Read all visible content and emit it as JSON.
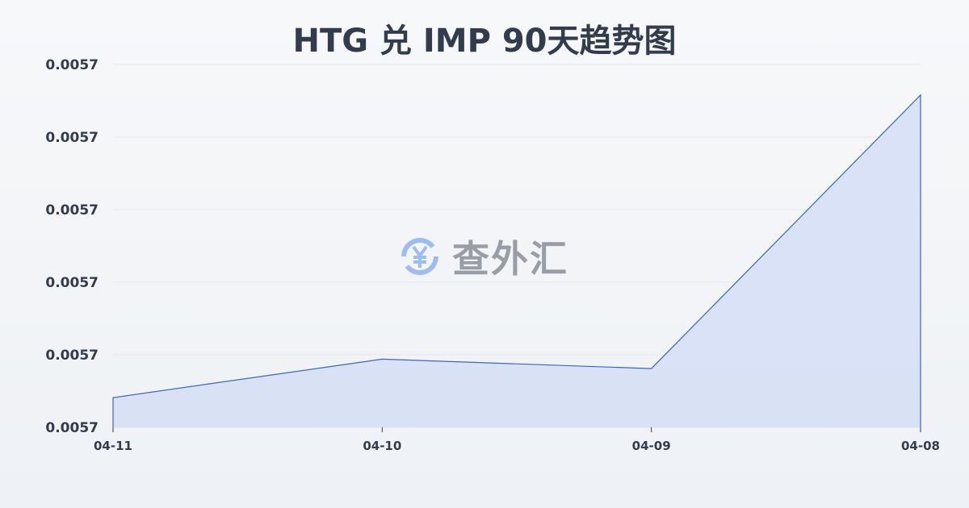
{
  "chart_data": {
    "type": "area",
    "title": "HTG 兑 IMP 90天趋势图",
    "categories": [
      "04-11",
      "04-10",
      "04-09",
      "04-08"
    ],
    "series": [
      {
        "values": [
          0.0057041,
          0.0057094,
          0.0057081,
          0.0057458
        ]
      }
    ],
    "yticks": [
      0.0057,
      0.00571,
      0.00572,
      0.00573,
      0.00574,
      0.00575
    ],
    "ytick_labels": [
      "0.0057",
      "0.0057",
      "0.0057",
      "0.0057",
      "0.0057",
      "0.0057"
    ],
    "ylim": [
      0.0057,
      0.00575
    ],
    "grid": true,
    "line_color": "#3a66c8",
    "fill_color": "#d6e0f5"
  },
  "watermark": {
    "text": "查外汇",
    "icon": "yen-exchange-icon"
  }
}
